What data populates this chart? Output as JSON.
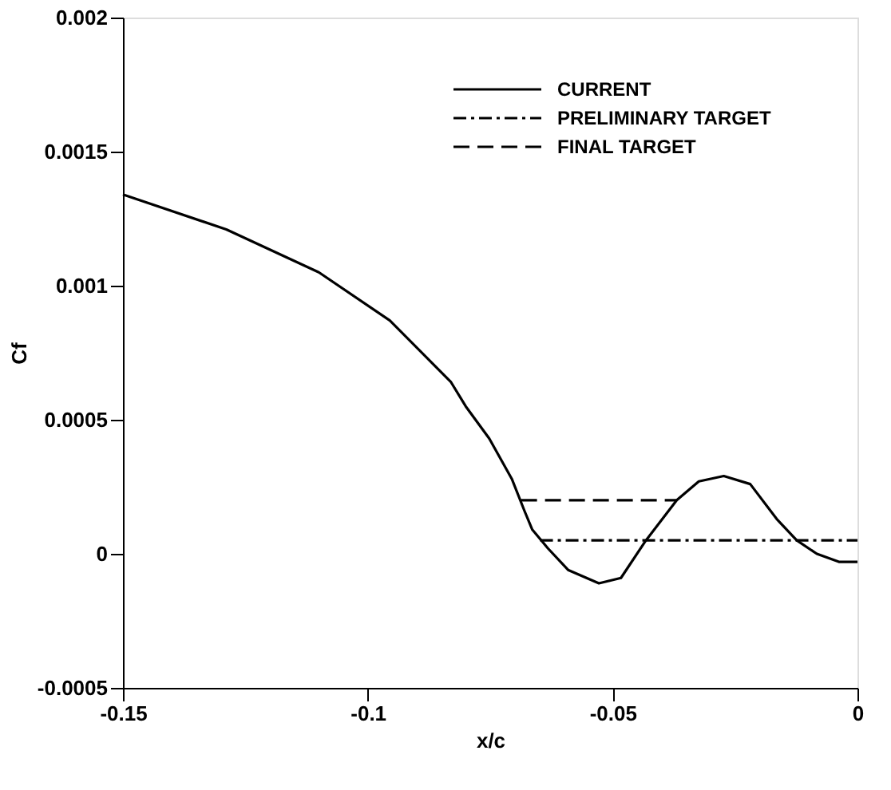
{
  "chart_data": {
    "type": "line",
    "xlabel": "x/c",
    "ylabel": "Cf",
    "xlim": [
      -0.15,
      0
    ],
    "xticks": [
      -0.15,
      -0.1,
      -0.05,
      0
    ],
    "ylim": [
      -0.0005,
      0.002
    ],
    "yticks": [
      -0.0005,
      0,
      0.0005,
      0.001,
      0.0015,
      0.002
    ],
    "legend": "top right",
    "grid": false,
    "series": [
      {
        "name": "CURRENT",
        "color": "#000000",
        "line_style": "solid",
        "x": [
          -0.15,
          -0.1289,
          -0.11,
          -0.0955,
          -0.083,
          -0.08,
          -0.0752,
          -0.0706,
          -0.068,
          -0.0664,
          -0.0632,
          -0.0591,
          -0.0528,
          -0.0483,
          -0.0432,
          -0.0369,
          -0.0324,
          -0.0273,
          -0.0219,
          -0.0165,
          -0.0124,
          -0.0083,
          -0.0038,
          0
        ],
        "values": [
          0.00134,
          0.00121,
          0.00105,
          0.00087,
          0.00064,
          0.00055,
          0.00043,
          0.00028,
          0.00016,
          9e-05,
          2e-05,
          -6e-05,
          -0.00011,
          -9e-05,
          5e-05,
          0.0002,
          0.00027,
          0.00029,
          0.00026,
          0.00013,
          5e-05,
          0.0,
          -3e-05,
          -3e-05
        ]
      },
      {
        "name": "PRELIMINARY TARGET",
        "color": "#000000",
        "line_style": "dashdot",
        "x": [
          -0.0648,
          0
        ],
        "values": [
          5e-05,
          5e-05
        ]
      },
      {
        "name": "FINAL TARGET",
        "color": "#000000",
        "line_style": "dashed",
        "x": [
          -0.0687,
          -0.0369
        ],
        "values": [
          0.0002,
          0.0002
        ]
      }
    ]
  }
}
